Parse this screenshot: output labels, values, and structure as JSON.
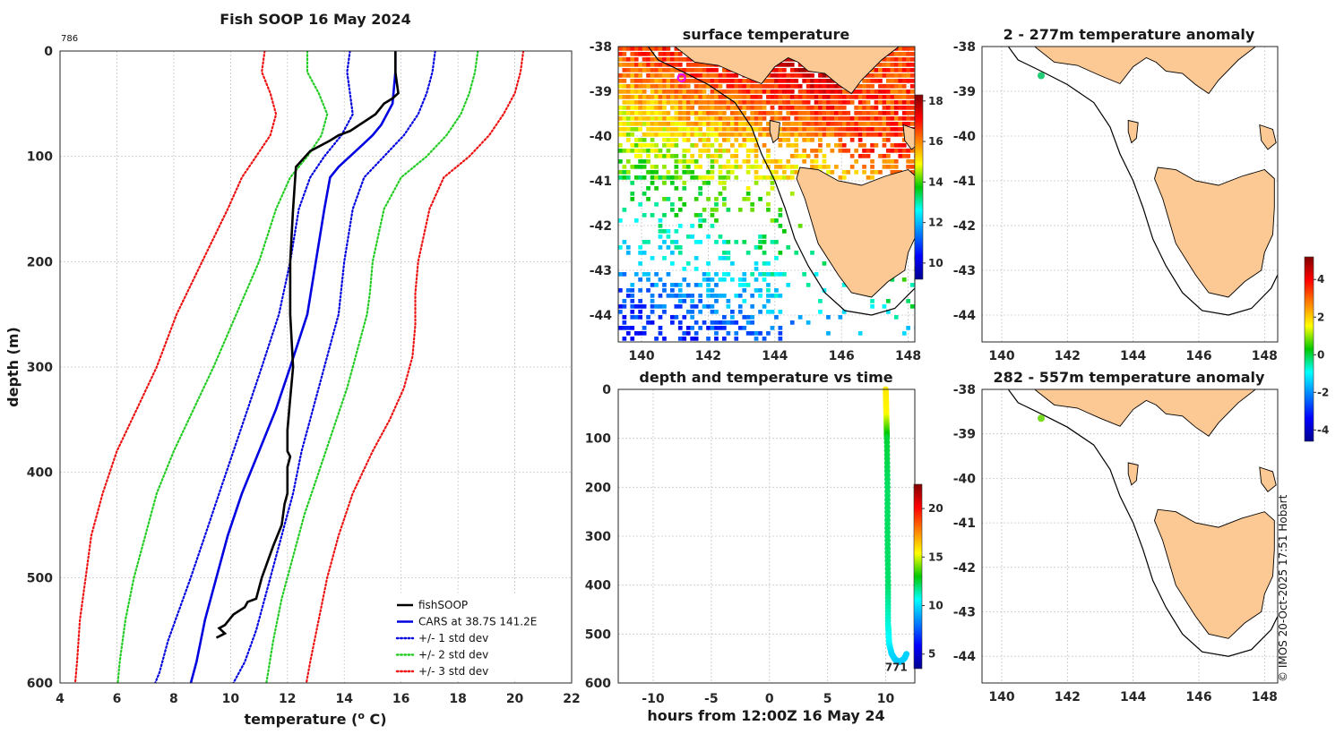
{
  "chart_data": [
    {
      "type": "line",
      "title": "Fish SOOP 16 May 2024",
      "corner_label": "786",
      "xlabel": "temperature (",
      "xlabel_sup": "o",
      "xlabel_end": " C)",
      "ylabel": "depth (m)",
      "xlim": [
        4,
        22
      ],
      "ylim": [
        0,
        600
      ],
      "y_reversed": true,
      "xticks": [
        "4",
        "6",
        "8",
        "10",
        "12",
        "14",
        "16",
        "18",
        "20",
        "22"
      ],
      "yticks": [
        "0",
        "100",
        "200",
        "300",
        "400",
        "500",
        "600"
      ],
      "grid": true,
      "legend_position": "bottom-right",
      "series": [
        {
          "name": "fishSOOP",
          "color": "#000000",
          "style": "solid",
          "x": [
            15.8,
            15.8,
            15.9,
            15.7,
            15.4,
            15.1,
            14.2,
            13.8,
            13.5,
            12.8,
            12.3,
            12.2,
            12.1,
            12.1,
            12.2,
            12.1,
            12.0,
            12.0,
            12.1,
            12.0,
            12.0,
            11.9,
            11.8,
            11.5,
            11.1,
            10.9,
            10.6,
            10.5,
            10.1,
            9.8,
            9.6,
            9.8,
            9.5
          ],
          "y": [
            0,
            20,
            40,
            45,
            50,
            60,
            76,
            80,
            85,
            95,
            110,
            150,
            200,
            250,
            300,
            330,
            360,
            380,
            385,
            395,
            420,
            430,
            450,
            470,
            500,
            520,
            523,
            528,
            535,
            545,
            548,
            553,
            557
          ]
        },
        {
          "name": "CARS at 38.7S 141.2E",
          "color": "#0000e0",
          "style": "solid",
          "x": [
            15.8,
            15.8,
            15.7,
            15.3,
            15.0,
            14.6,
            14.2,
            13.8,
            13.5,
            13.3,
            13.0,
            12.7,
            12.1,
            11.6,
            11.0,
            10.4,
            9.9,
            9.5,
            9.1,
            8.8,
            8.5
          ],
          "y": [
            0,
            20,
            50,
            70,
            80,
            90,
            100,
            110,
            120,
            150,
            200,
            250,
            300,
            340,
            380,
            420,
            460,
            500,
            540,
            580,
            610
          ]
        },
        {
          "name": "+/- 1 std dev",
          "color": "#0000e0",
          "style": "dot",
          "x": [
            14.2,
            14.1,
            14.2,
            14.3,
            13.9,
            13.3,
            12.8,
            12.4,
            12.1,
            11.7,
            11.1,
            10.6,
            10.1,
            9.6,
            9.1,
            8.6,
            8.2,
            7.8,
            7.5,
            7.2
          ],
          "y": [
            0,
            20,
            40,
            60,
            80,
            100,
            120,
            150,
            200,
            250,
            300,
            340,
            380,
            420,
            460,
            500,
            530,
            560,
            590,
            610
          ]
        },
        {
          "name": "+/- 1 std dev",
          "color": "#0000e0",
          "style": "dot",
          "x": [
            17.2,
            17.1,
            16.9,
            16.6,
            16.1,
            15.4,
            14.7,
            14.3,
            14.0,
            13.8,
            13.6,
            13.3,
            12.9,
            12.5,
            12.2,
            11.8,
            11.5,
            11.2,
            10.9,
            10.5,
            10.1,
            9.9
          ],
          "y": [
            0,
            20,
            40,
            60,
            80,
            100,
            120,
            150,
            200,
            250,
            270,
            300,
            340,
            380,
            420,
            460,
            490,
            520,
            550,
            580,
            600,
            610
          ]
        },
        {
          "name": "+/- 2 std dev",
          "color": "#22cc22",
          "style": "dot",
          "x": [
            12.7,
            12.7,
            13.1,
            13.4,
            13.2,
            12.7,
            12.1,
            11.6,
            11.0,
            10.2,
            9.4,
            8.7,
            8.0,
            7.4,
            7.0,
            6.6,
            6.3,
            6.1,
            6.0
          ],
          "y": [
            0,
            20,
            40,
            60,
            80,
            100,
            120,
            150,
            200,
            250,
            300,
            340,
            380,
            420,
            460,
            500,
            540,
            580,
            610
          ]
        },
        {
          "name": "+/- 2 std dev",
          "color": "#22cc22",
          "style": "dot",
          "x": [
            18.7,
            18.6,
            18.4,
            18.1,
            17.6,
            16.9,
            16.0,
            15.4,
            15.0,
            14.9,
            14.8,
            14.5,
            14.1,
            13.6,
            13.1,
            12.6,
            12.2,
            11.8,
            11.5,
            11.2
          ],
          "y": [
            0,
            20,
            40,
            60,
            80,
            100,
            120,
            150,
            200,
            230,
            250,
            280,
            320,
            360,
            400,
            440,
            480,
            520,
            560,
            610
          ]
        },
        {
          "name": "+/- 3 std dev",
          "color": "#ee1111",
          "style": "dot",
          "x": [
            11.2,
            11.1,
            11.4,
            11.6,
            11.4,
            10.9,
            10.4,
            9.9,
            9.0,
            8.1,
            7.4,
            6.7,
            6.0,
            5.5,
            5.1,
            4.9,
            4.7,
            4.6,
            4.5
          ],
          "y": [
            0,
            20,
            40,
            60,
            80,
            100,
            120,
            150,
            200,
            250,
            300,
            340,
            380,
            420,
            460,
            500,
            540,
            580,
            610
          ]
        },
        {
          "name": "+/- 3 std dev",
          "color": "#ee1111",
          "style": "dot",
          "x": [
            20.3,
            20.2,
            20.0,
            19.6,
            19.1,
            18.4,
            17.5,
            17.0,
            16.6,
            16.5,
            16.5,
            16.4,
            16.1,
            15.6,
            15.0,
            14.3,
            13.8,
            13.4,
            13.1,
            12.8,
            12.6
          ],
          "y": [
            0,
            20,
            40,
            60,
            80,
            100,
            120,
            150,
            200,
            230,
            260,
            290,
            320,
            350,
            380,
            420,
            460,
            500,
            540,
            580,
            610
          ]
        }
      ],
      "legend": [
        {
          "label": "fishSOOP",
          "color": "#000000",
          "style": "solid"
        },
        {
          "label": "CARS at 38.7S 141.2E",
          "color": "#0000e0",
          "style": "solid"
        },
        {
          "label": "+/- 1 std dev",
          "color": "#0000e0",
          "style": "dot"
        },
        {
          "label": "+/- 2 std dev",
          "color": "#22cc22",
          "style": "dot"
        },
        {
          "label": "+/- 3 std dev",
          "color": "#ee1111",
          "style": "dot"
        }
      ]
    },
    {
      "type": "heatmap",
      "title": "surface temperature",
      "xlim": [
        139.3,
        148.2
      ],
      "ylim": [
        -44.6,
        -38
      ],
      "xticks": [
        "140",
        "142",
        "144",
        "146",
        "148"
      ],
      "yticks": [
        "-38",
        "-39",
        "-40",
        "-41",
        "-42",
        "-43",
        "-44"
      ],
      "colorbar_ticks": [
        "18",
        "16",
        "14",
        "12",
        "10"
      ],
      "colorbar_range": [
        9.2,
        18.3
      ],
      "marker": {
        "lon": 141.2,
        "lat": -38.7,
        "color": "#ee00ee"
      }
    },
    {
      "type": "scatter",
      "title": "depth and temperature vs time",
      "xlabel": "hours from 12:00Z 16 May 24",
      "xlim": [
        -13,
        12.5
      ],
      "ylim": [
        0,
        600
      ],
      "xticks": [
        "-10",
        "-5",
        "0",
        "5",
        "10"
      ],
      "yticks": [
        "0",
        "100",
        "200",
        "300",
        "400",
        "500",
        "600"
      ],
      "colorbar_ticks": [
        "20",
        "15",
        "10",
        "5"
      ],
      "colorbar_range": [
        3.5,
        22.5
      ],
      "end_label": "771",
      "track_hours": [
        10.0,
        10.05,
        10.1,
        10.15,
        10.15,
        10.2,
        10.2,
        10.3,
        10.5,
        10.8,
        11.2,
        11.6,
        11.8
      ],
      "track_depth": [
        0,
        50,
        100,
        200,
        300,
        400,
        480,
        520,
        540,
        552,
        557,
        550,
        540
      ],
      "track_temp": [
        15.8,
        15.5,
        12.5,
        12.1,
        12.1,
        12.0,
        11.0,
        10.5,
        9.9,
        9.8,
        9.6,
        9.7,
        9.8
      ]
    },
    {
      "type": "heatmap",
      "title": "2 - 277m temperature anomaly",
      "xlim": [
        139.4,
        148.4
      ],
      "ylim": [
        -44.6,
        -38
      ],
      "xticks": [
        "140",
        "142",
        "144",
        "146",
        "148"
      ],
      "yticks": [
        "-38",
        "-39",
        "-40",
        "-41",
        "-42",
        "-43",
        "-44"
      ],
      "marker": {
        "lon": 141.2,
        "lat": -38.65,
        "color": "#22cc77"
      }
    },
    {
      "type": "heatmap",
      "title": "282 - 557m temperature anomaly",
      "xlim": [
        139.4,
        148.4
      ],
      "ylim": [
        -44.6,
        -38
      ],
      "xticks": [
        "140",
        "142",
        "144",
        "146",
        "148"
      ],
      "yticks": [
        "-38",
        "-39",
        "-40",
        "-41",
        "-42",
        "-43",
        "-44"
      ],
      "marker": {
        "lon": 141.2,
        "lat": -38.65,
        "color": "#77dd22"
      }
    },
    {
      "type": "colorbar",
      "ticks": [
        "4",
        "2",
        "0",
        "-2",
        "-4"
      ],
      "range": [
        -4.6,
        5.2
      ]
    }
  ],
  "credit": "© IMOS 20-Oct-2025 17:51 Hobart"
}
